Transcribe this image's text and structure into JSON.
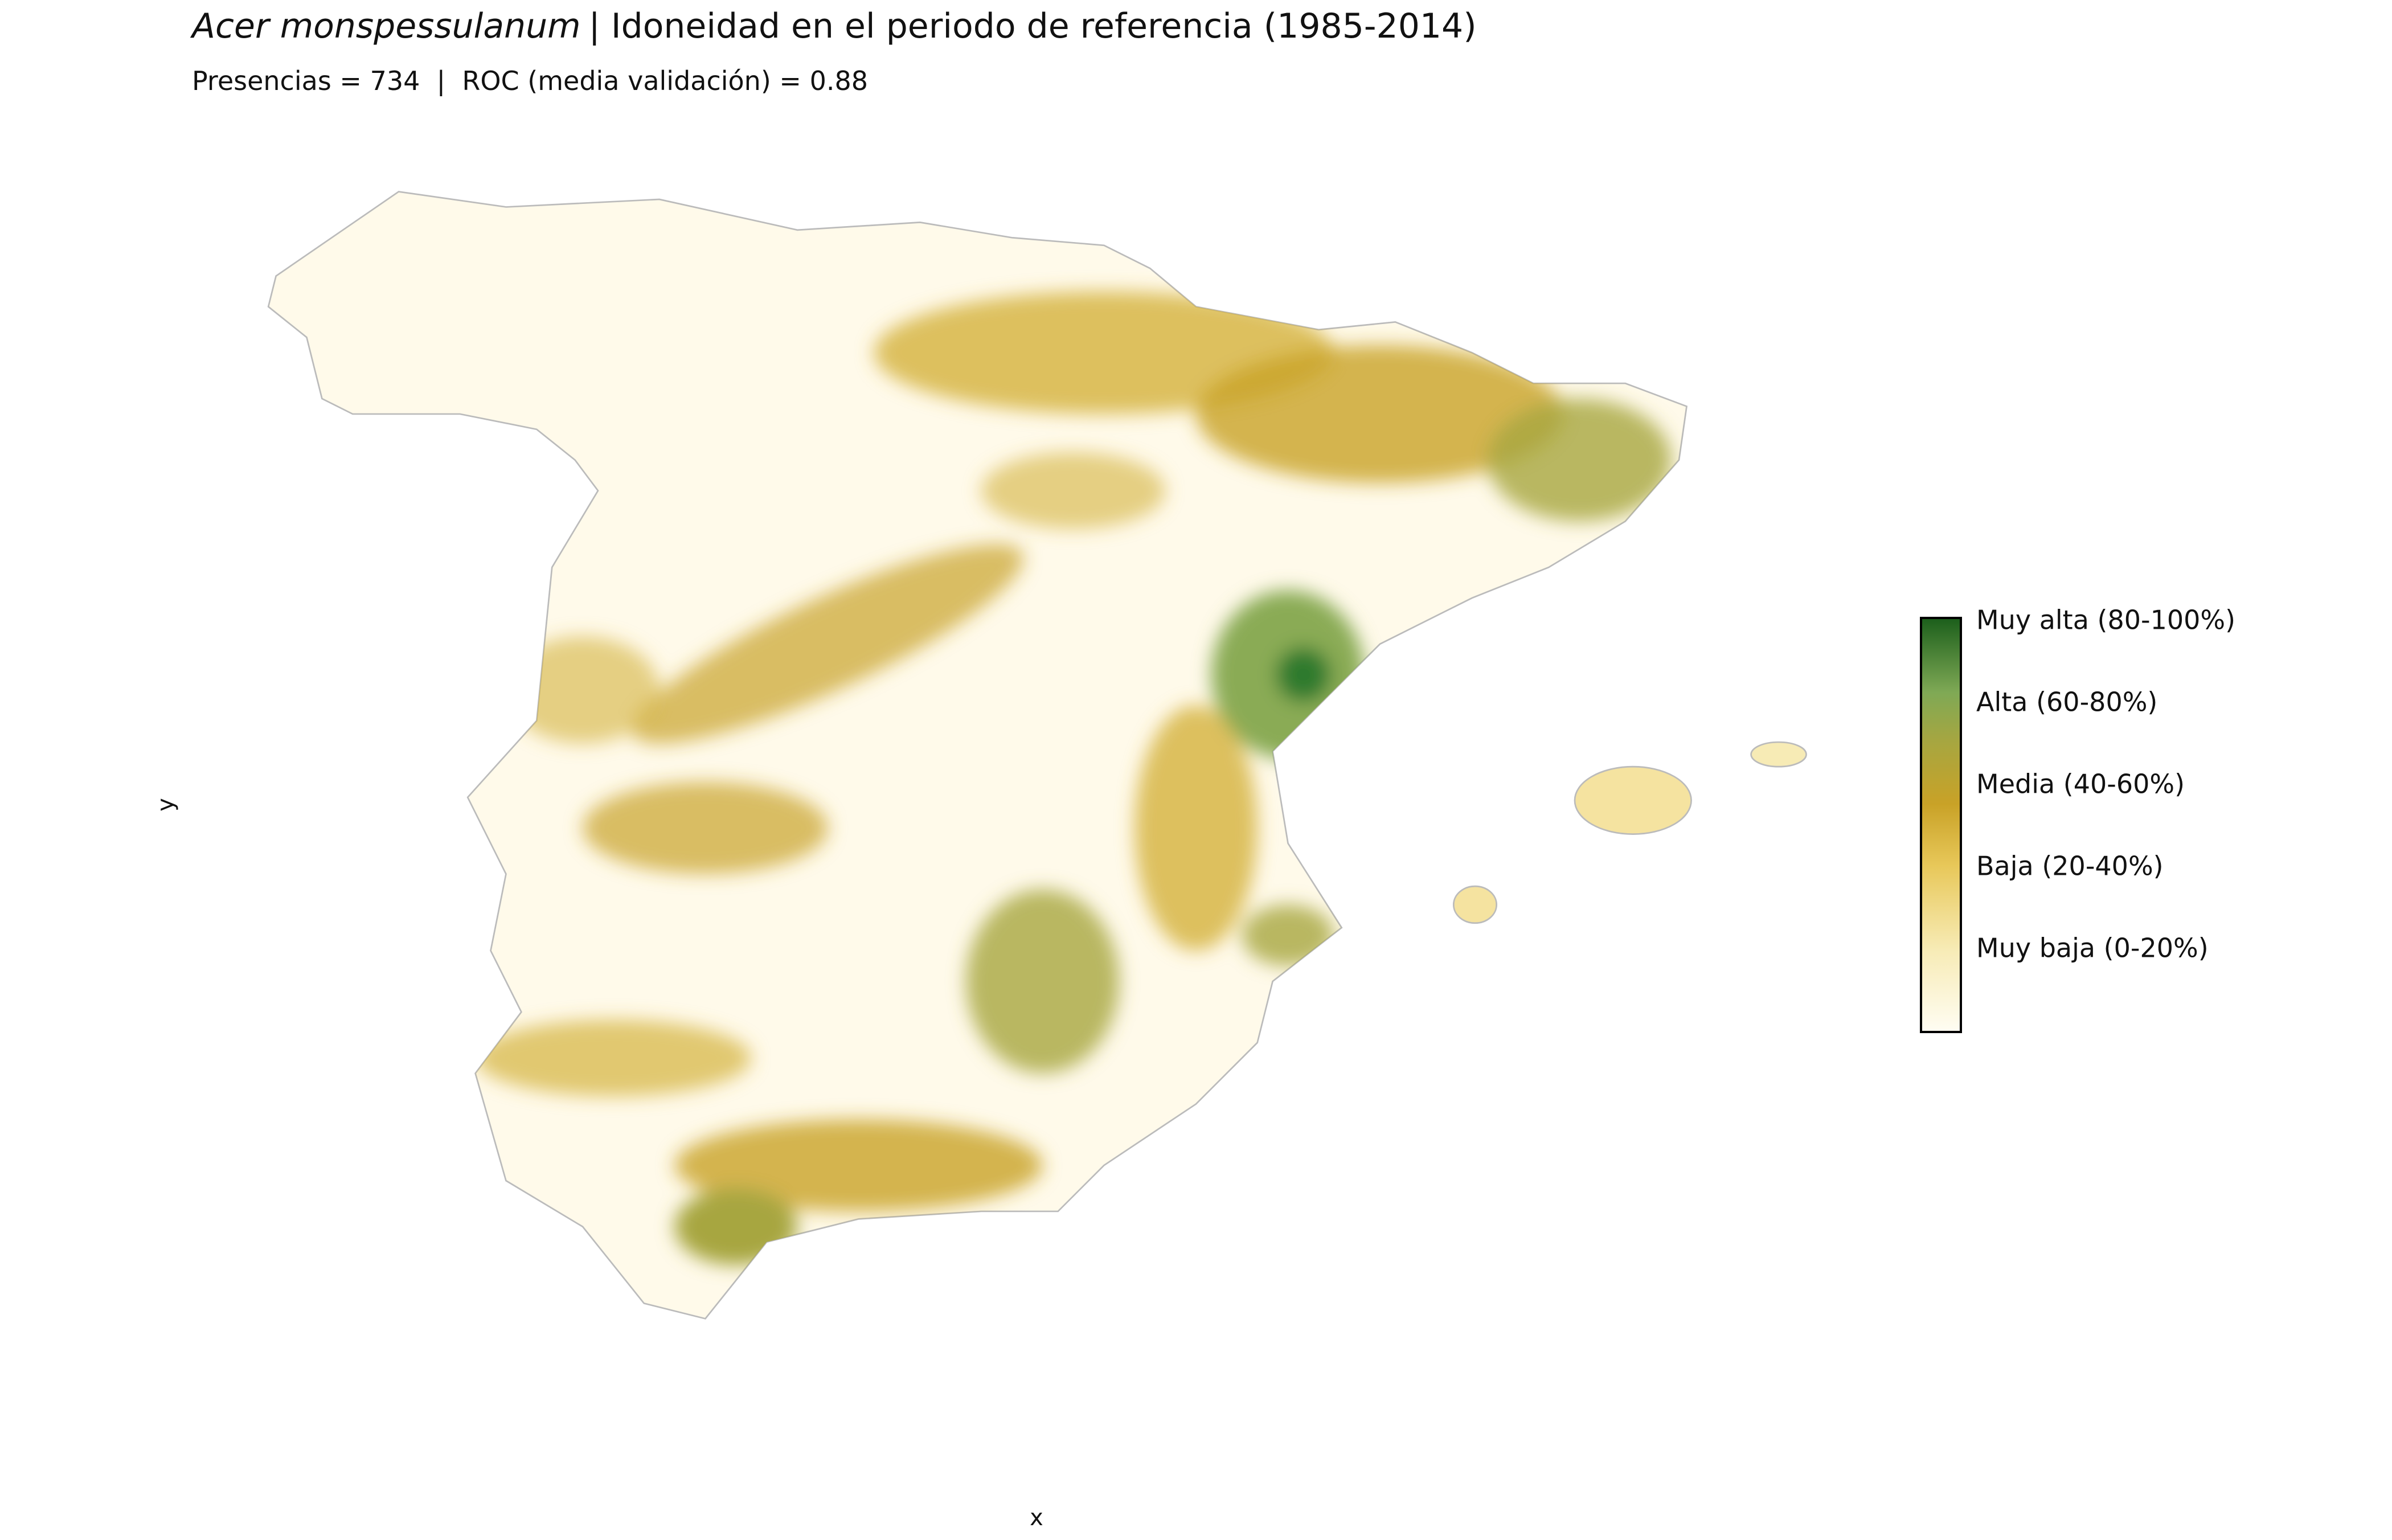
{
  "header": {
    "species": "Acer monspessulanum",
    "title": "| Idoneidad en el periodo de referencia (1985-2014)",
    "subtitle": "Presencias = 734  |  ROC (media validación) = 0.88"
  },
  "axes": {
    "x": "x",
    "y": "y"
  },
  "legend": {
    "labels": [
      "Muy alta (80-100%)",
      "Alta (60-80%)",
      "Media (40-60%)",
      "Baja (20-40%)",
      "Muy baja (0-20%)"
    ]
  }
}
